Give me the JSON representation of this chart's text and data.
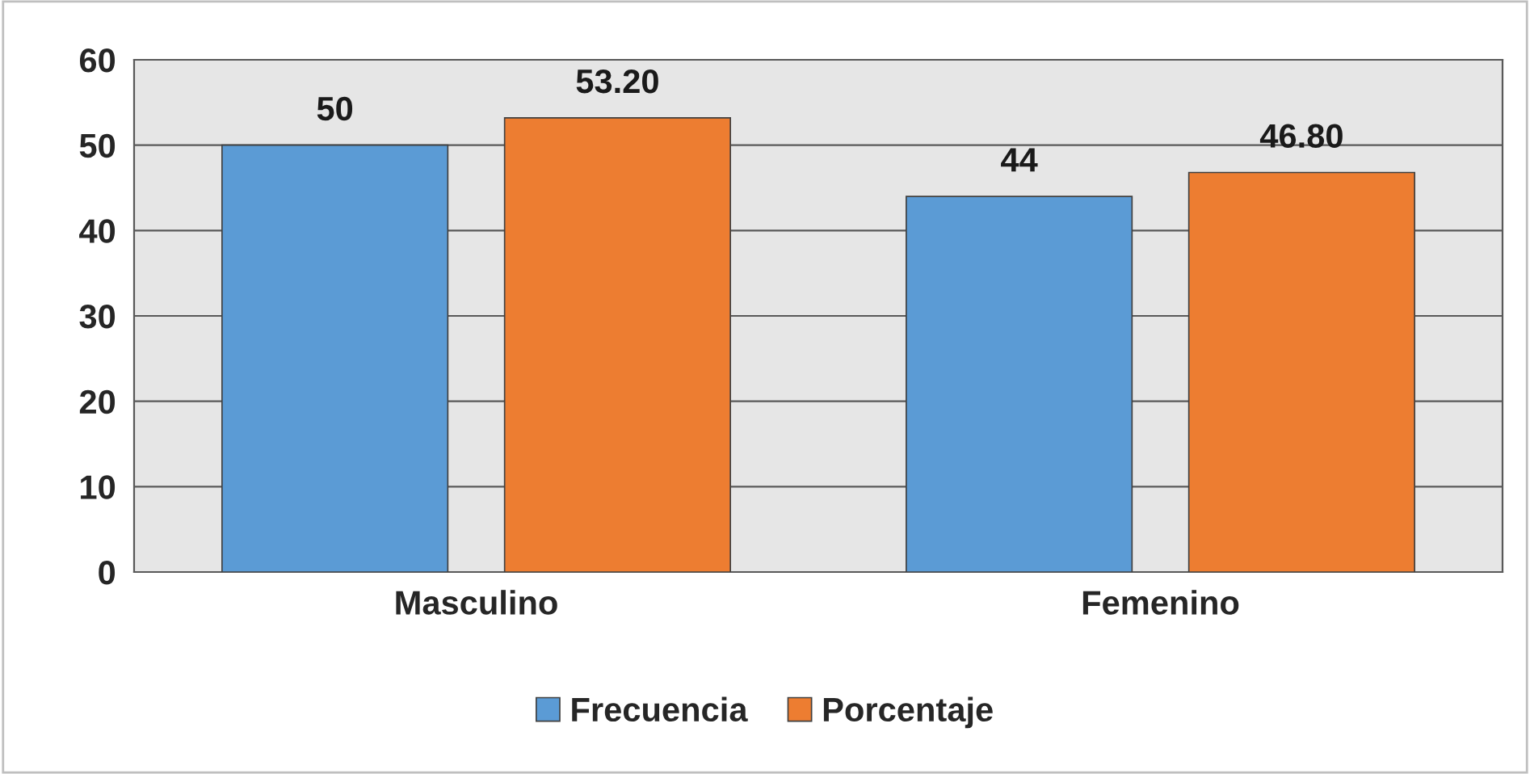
{
  "chart_data": {
    "type": "bar",
    "categories": [
      "Masculino",
      "Femenino"
    ],
    "series": [
      {
        "name": "Frecuencia",
        "color": "#5b9bd5",
        "values": [
          50,
          44
        ],
        "value_labels": [
          "50",
          "44"
        ]
      },
      {
        "name": "Porcentaje",
        "color": "#ed7d31",
        "values": [
          53.2,
          46.8
        ],
        "value_labels": [
          "53.20",
          "46.80"
        ]
      }
    ],
    "ylim": [
      0,
      60
    ],
    "yticks": [
      0,
      10,
      20,
      30,
      40,
      50,
      60
    ],
    "grid": "y",
    "legend": "bottom"
  }
}
